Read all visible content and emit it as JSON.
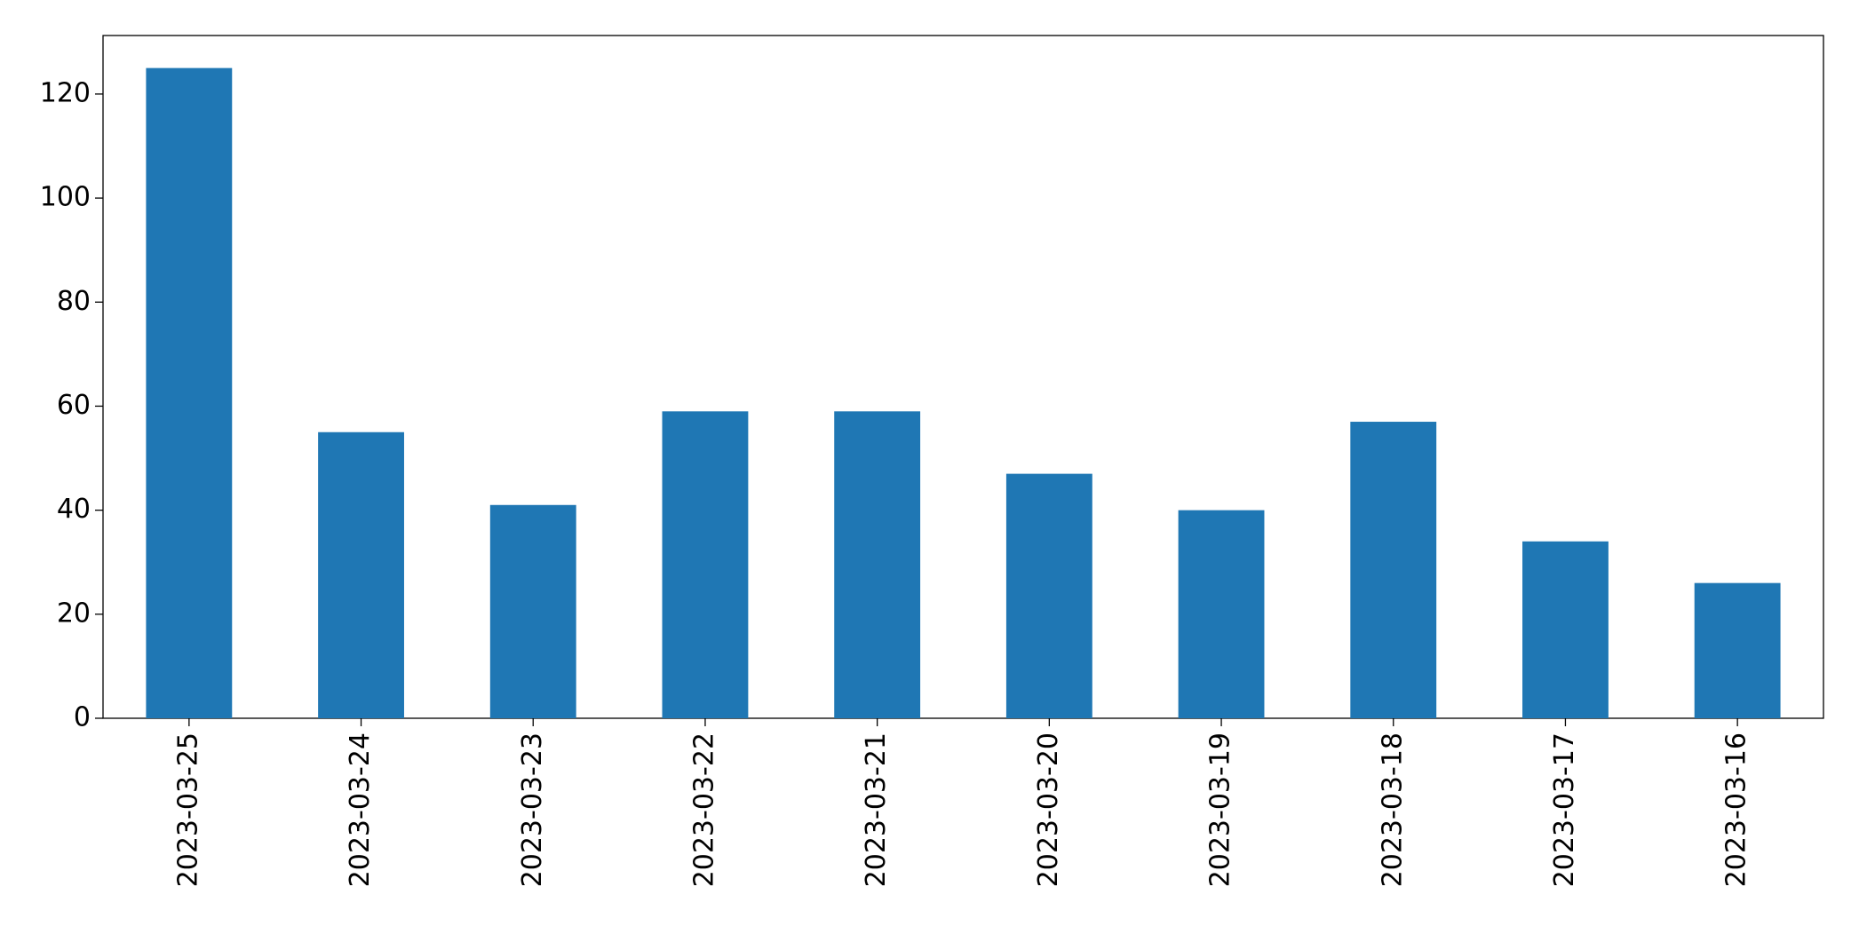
{
  "chart_data": {
    "type": "bar",
    "categories": [
      "2023-03-25",
      "2023-03-24",
      "2023-03-23",
      "2023-03-22",
      "2023-03-21",
      "2023-03-20",
      "2023-03-19",
      "2023-03-18",
      "2023-03-17",
      "2023-03-16"
    ],
    "values": [
      125,
      55,
      41,
      59,
      59,
      47,
      40,
      57,
      34,
      26
    ],
    "color": "#1f77b4",
    "ylim": [
      0,
      131.25
    ],
    "yticks": [
      0,
      20,
      40,
      60,
      80,
      100,
      120
    ],
    "grid": false
  }
}
